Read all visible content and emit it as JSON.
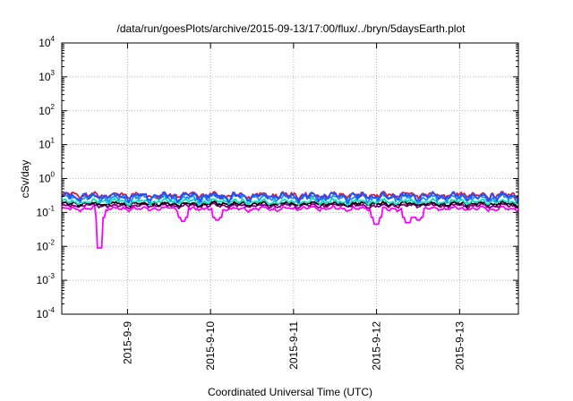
{
  "chart_data": {
    "type": "line",
    "title": "/data/run/goesPlots/archive/2015-09-13/17:00/flux/../bryn/5daysEarth.plot",
    "xlabel": "Coordinated Universal Time (UTC)",
    "ylabel": "cSv/day",
    "yscale": "log",
    "ylim": [
      0.0001,
      10000
    ],
    "yticks": [
      {
        "base": "10",
        "exp": "-4",
        "value": 0.0001
      },
      {
        "base": "10",
        "exp": "-3",
        "value": 0.001
      },
      {
        "base": "10",
        "exp": "-2",
        "value": 0.01
      },
      {
        "base": "10",
        "exp": "-1",
        "value": 0.1
      },
      {
        "base": "10",
        "exp": "0",
        "value": 1
      },
      {
        "base": "10",
        "exp": "1",
        "value": 10
      },
      {
        "base": "10",
        "exp": "2",
        "value": 100
      },
      {
        "base": "10",
        "exp": "3",
        "value": 1000
      },
      {
        "base": "10",
        "exp": "4",
        "value": 10000
      }
    ],
    "xlim": [
      "2015-09-08 05:00",
      "2015-09-13 17:00"
    ],
    "xticks": [
      "2015-9-9",
      "2015-9-10",
      "2015-9-11",
      "2015-9-12",
      "2015-9-13"
    ],
    "grid": true,
    "series": [
      {
        "color": "#ff00ff",
        "base": 0.13,
        "spread": 0.22,
        "dips": [
          {
            "x": "2015-09-08 16:00",
            "y": 0.009
          },
          {
            "x": "2015-09-09 16:00",
            "y": 0.055
          },
          {
            "x": "2015-09-10 02:00",
            "y": 0.06
          },
          {
            "x": "2015-09-12 00:00",
            "y": 0.045
          },
          {
            "x": "2015-09-12 09:00",
            "y": 0.05
          },
          {
            "x": "2015-09-12 12:00",
            "y": 0.06
          }
        ]
      },
      {
        "color": "#800080",
        "base": 0.16,
        "spread": 0.2,
        "dips": []
      },
      {
        "color": "#000000",
        "base": 0.18,
        "spread": 0.2,
        "dips": []
      },
      {
        "color": "#00e0c0",
        "base": 0.21,
        "spread": 0.25,
        "dips": []
      },
      {
        "color": "#1e90ff",
        "base": 0.27,
        "spread": 0.35,
        "dips": []
      },
      {
        "color": "#d02030",
        "base": 0.33,
        "spread": 0.3,
        "dips": []
      },
      {
        "color": "#2050ff",
        "base": 0.3,
        "spread": 0.4,
        "dips": []
      }
    ]
  }
}
